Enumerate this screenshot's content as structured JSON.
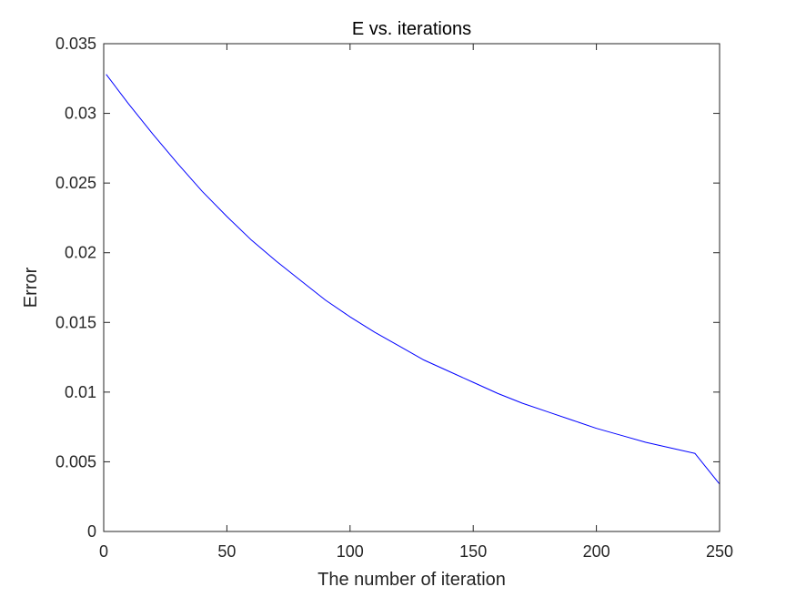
{
  "chart_data": {
    "type": "line",
    "title": "E vs. iterations",
    "xlabel": "The number of iteration",
    "ylabel": "Error",
    "xlim": [
      0,
      250
    ],
    "ylim": [
      0,
      0.035
    ],
    "x_ticks": [
      0,
      50,
      100,
      150,
      200,
      250
    ],
    "x_tick_labels": [
      "0",
      "50",
      "100",
      "150",
      "200",
      "250"
    ],
    "y_ticks": [
      0,
      0.005,
      0.01,
      0.015,
      0.02,
      0.025,
      0.03,
      0.035
    ],
    "y_tick_labels": [
      "0",
      "0.005",
      "0.01",
      "0.015",
      "0.02",
      "0.025",
      "0.03",
      "0.035"
    ],
    "grid": false,
    "series": [
      {
        "color": "#0000ff",
        "x": [
          1,
          10,
          20,
          30,
          40,
          50,
          60,
          70,
          80,
          90,
          100,
          110,
          120,
          130,
          140,
          150,
          160,
          170,
          180,
          190,
          200,
          210,
          220,
          230,
          240,
          250
        ],
        "y": [
          0.0328,
          0.0307,
          0.0285,
          0.0264,
          0.0244,
          0.0226,
          0.0209,
          0.0194,
          0.018,
          0.0166,
          0.0154,
          0.0143,
          0.0133,
          0.0123,
          0.0115,
          0.0107,
          0.0099,
          0.0092,
          0.0086,
          0.008,
          0.0074,
          0.0069,
          0.0064,
          0.006,
          0.0056,
          0.0034
        ]
      }
    ]
  },
  "colors": {
    "axes": "#262626",
    "line": "#0000ff",
    "background": "#ffffff"
  }
}
